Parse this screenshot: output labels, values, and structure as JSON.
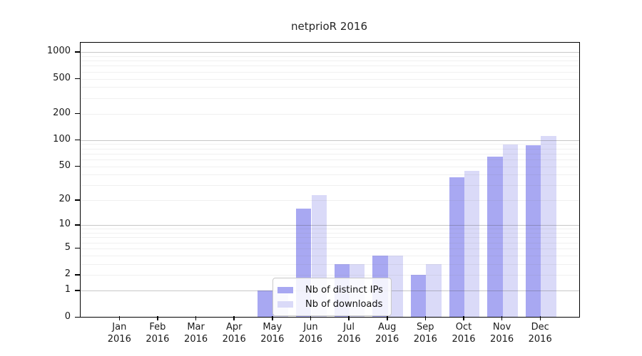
{
  "figure": {
    "title": "netprioR 2016"
  },
  "chart_data": {
    "type": "bar",
    "title": "netprioR 2016",
    "categories": [
      "Jan",
      "Feb",
      "Mar",
      "Apr",
      "May",
      "Jun",
      "Jul",
      "Aug",
      "Sep",
      "Oct",
      "Nov",
      "Dec"
    ],
    "category_year": "2016",
    "series": [
      {
        "name": "Nb of distinct IPs",
        "color": "#a8a8f2",
        "values": [
          0,
          0,
          0,
          0,
          1,
          16,
          3,
          4,
          2,
          37,
          65,
          88
        ]
      },
      {
        "name": "Nb of downloads",
        "color": "#dadaf8",
        "values": [
          0,
          0,
          0,
          0,
          1,
          23,
          3,
          4,
          3,
          44,
          89,
          112
        ]
      }
    ],
    "xlabel": "",
    "ylabel": "",
    "y_axis": {
      "scale": "log10(1+x)",
      "tick_values": [
        0,
        1,
        2,
        5,
        10,
        20,
        50,
        100,
        200,
        500,
        1000
      ],
      "major_gridlines": [
        1,
        10,
        100,
        1000
      ],
      "minor_gridlines": [
        2,
        3,
        4,
        5,
        6,
        7,
        8,
        9,
        20,
        30,
        40,
        50,
        60,
        70,
        80,
        90,
        200,
        300,
        400,
        500,
        600,
        700,
        800,
        900
      ],
      "range_top": 1300
    },
    "grid": "horizontal",
    "legend_position": "lower center-left, inside plot"
  },
  "legend": {
    "items": [
      "Nb of distinct IPs",
      "Nb of downloads"
    ]
  },
  "colors": {
    "bar_ips": "#a8a8f2",
    "bar_downloads": "#dadaf8",
    "spine": "#000000",
    "text": "#1a1a1a",
    "legend_border": "#c9c9c9",
    "legend_bg": "rgba(255,255,255,0.85)",
    "background": "#ffffff"
  }
}
